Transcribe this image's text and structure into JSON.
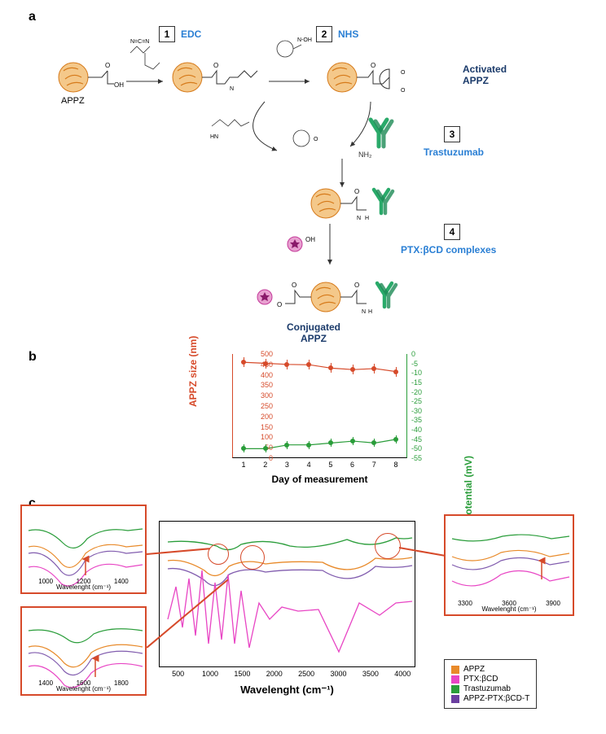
{
  "labels": {
    "panel_a": "a",
    "panel_b": "b",
    "panel_c": "c"
  },
  "panelA": {
    "steps": [
      {
        "num": "1",
        "label": "EDC"
      },
      {
        "num": "2",
        "label": "NHS"
      },
      {
        "num": "3",
        "label": "Trastuzumab"
      },
      {
        "num": "4",
        "label": "PTX:βCD complexes"
      }
    ],
    "mol": {
      "appz": "APPZ",
      "oh": "OH",
      "nh2": "NH2"
    },
    "annot": {
      "activated": "Activated APPZ",
      "conjugated": "Conjugated APPZ"
    }
  },
  "chartB": {
    "ylabel_left": "APPZ size (nm)",
    "ylabel_right": "APPZ zeta potential (mV)",
    "xlabel": "Day of measurement",
    "xlim": [
      1,
      8
    ],
    "yticks_left": [
      0,
      50,
      100,
      150,
      200,
      250,
      300,
      350,
      400,
      450,
      500
    ],
    "yticks_right": [
      0,
      -5,
      -10,
      -15,
      -20,
      -25,
      -30,
      -35,
      -40,
      -45,
      -50,
      -55
    ],
    "xticks": [
      1,
      2,
      3,
      4,
      5,
      6,
      7,
      8
    ],
    "size_series": {
      "color": "#d64a2a",
      "marker": "circle",
      "values": [
        460,
        455,
        450,
        448,
        432,
        425,
        430,
        415
      ]
    },
    "zeta_series": {
      "color": "#2a9d3a",
      "marker": "circle",
      "values": [
        -50,
        -50,
        -48,
        -48,
        -47,
        -46,
        -47,
        -45
      ]
    },
    "grid_color": "#e0e0e0"
  },
  "panelC": {
    "main": {
      "xlabel": "Wavelenght (cm⁻¹)",
      "xlim": [
        200,
        4200
      ],
      "xticks": [
        500,
        1000,
        1500,
        2000,
        2500,
        3000,
        3500,
        4000
      ]
    },
    "insets": [
      {
        "xlabel": "Wavelenght (cm⁻¹)",
        "xticks": [
          1000,
          1200,
          1400
        ]
      },
      {
        "xlabel": "Wavelenght (cm⁻¹)",
        "xticks": [
          1400,
          1600,
          1800
        ]
      },
      {
        "xlabel": "Wavelenght (cm⁻¹)",
        "xticks": [
          3300,
          3600,
          3900
        ]
      }
    ],
    "legend": [
      {
        "label": "APPZ",
        "color": "#e88a2a"
      },
      {
        "label": "PTX:βCD",
        "color": "#e845c4"
      },
      {
        "label": "Trastuzumab",
        "color": "#2a9d3a"
      },
      {
        "label": "APPZ-PTX:βCD-T",
        "color": "#6b3fa0"
      }
    ],
    "trace_colors": {
      "appz": "#e88a2a",
      "ptx": "#e845c4",
      "trz": "#2a9d3a",
      "conj": "#6b3fa0"
    }
  },
  "colors": {
    "nanoparticle": "#e8a55a",
    "nanoparticle_stroke": "#d67a1a",
    "antibody": "#2aaa6a",
    "ptx_star": "#c43a9a",
    "arrow": "#333333"
  }
}
